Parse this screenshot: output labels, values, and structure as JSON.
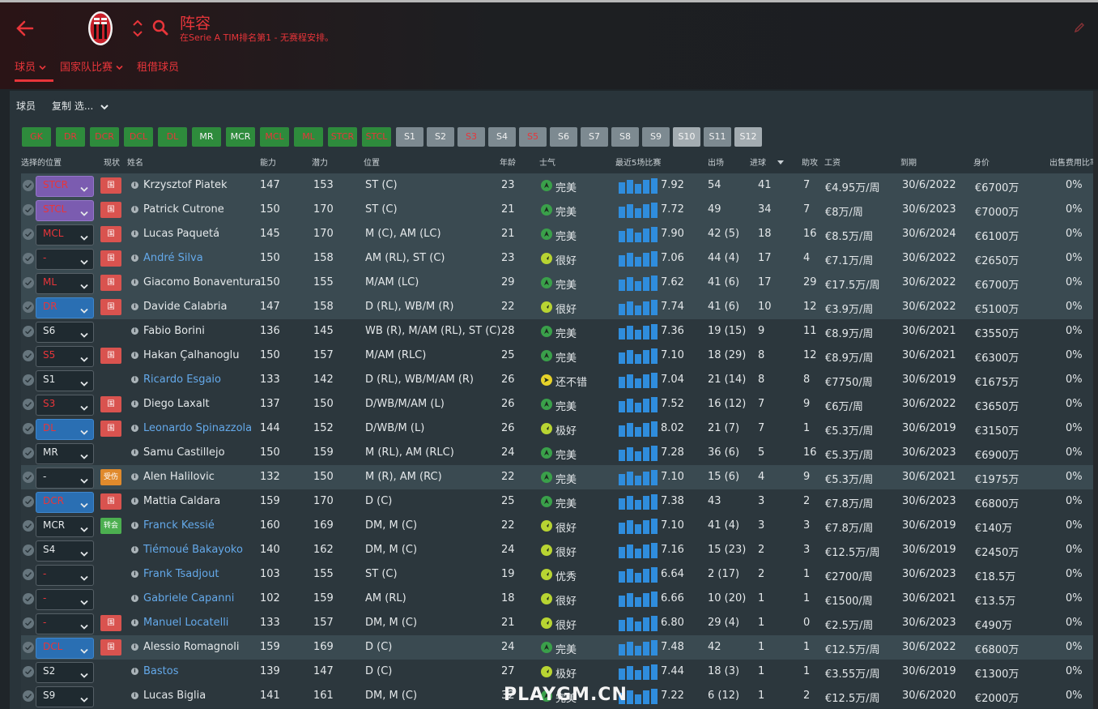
{
  "header": {
    "title": "阵容",
    "subtitle": "在Serie A TIM排名第1 - 无赛程安排。"
  },
  "nav_tabs": [
    {
      "label": "球员",
      "has_dropdown": true,
      "active": true
    },
    {
      "label": "国家队比赛",
      "has_dropdown": true,
      "active": false
    },
    {
      "label": "租借球员",
      "has_dropdown": false,
      "active": false
    }
  ],
  "toolbar": {
    "label": "球员",
    "select": "复制 选..."
  },
  "position_buttons": [
    {
      "label": "GK",
      "state": "green-red"
    },
    {
      "label": "DR",
      "state": "green-red"
    },
    {
      "label": "DCR",
      "state": "green-red"
    },
    {
      "label": "DCL",
      "state": "green-red"
    },
    {
      "label": "DL",
      "state": "green-red"
    },
    {
      "label": "MR",
      "state": "green"
    },
    {
      "label": "MCR",
      "state": "green"
    },
    {
      "label": "MCL",
      "state": "green-red"
    },
    {
      "label": "ML",
      "state": "green-red"
    },
    {
      "label": "STCR",
      "state": "green-red"
    },
    {
      "label": "STCL",
      "state": "green-red"
    },
    {
      "label": "S1",
      "state": "gray"
    },
    {
      "label": "S2",
      "state": "gray"
    },
    {
      "label": "S3",
      "state": "gray-red"
    },
    {
      "label": "S4",
      "state": "gray"
    },
    {
      "label": "S5",
      "state": "gray-red"
    },
    {
      "label": "S6",
      "state": "gray"
    },
    {
      "label": "S7",
      "state": "gray"
    },
    {
      "label": "S8",
      "state": "gray"
    },
    {
      "label": "S9",
      "state": "gray"
    },
    {
      "label": "S10",
      "state": "light"
    },
    {
      "label": "S11",
      "state": "gray"
    },
    {
      "label": "S12",
      "state": "light"
    }
  ],
  "columns": {
    "selected_position": "选择的位置",
    "status": "现状",
    "name": "姓名",
    "ability": "能力",
    "potential": "潜力",
    "position": "位置",
    "age": "年龄",
    "morale": "士气",
    "last5": "最近5场比赛",
    "apps": "出场",
    "goals": "进球",
    "assists": "助攻",
    "wage": "工资",
    "expires": "到期",
    "value": "身价",
    "transfer_fee": "出售费用比率"
  },
  "colors": {
    "accent_red": "#e8353a",
    "link_blue": "#64a9ea",
    "dd_blue": "#2a6fb3",
    "dd_purple": "#7b5cb0",
    "badge_red": "#d9534f",
    "badge_orange": "#e08a2c",
    "badge_green": "#4caf50",
    "morale_green": "#3aa04a",
    "morale_yellow": "#e6d22a",
    "spark_blue": "#2f8ddd"
  },
  "players": [
    {
      "sel": "STCR",
      "dd": "purple",
      "sel_red": true,
      "badge": "国家...",
      "badge_color": "red",
      "name": "Krzysztof Piatek",
      "link": false,
      "ca": "147",
      "pa": "153",
      "position": "ST (C)",
      "age": "23",
      "morale": "完美",
      "morale_icon": "up",
      "rating": "7.92",
      "apps": "54",
      "goals": "41",
      "assists": "7",
      "wage": "€4.95万/周",
      "expires": "30/6/2022",
      "value": "€6700万",
      "fee": "0%"
    },
    {
      "sel": "STCL",
      "dd": "purple",
      "sel_red": true,
      "badge": "国家...",
      "badge_color": "red",
      "name": "Patrick Cutrone",
      "link": false,
      "ca": "150",
      "pa": "170",
      "position": "ST (C)",
      "age": "21",
      "morale": "完美",
      "morale_icon": "up",
      "rating": "7.72",
      "apps": "49",
      "goals": "34",
      "assists": "7",
      "wage": "€8万/周",
      "expires": "30/6/2023",
      "value": "€7000万",
      "fee": "0%"
    },
    {
      "sel": "MCL",
      "dd": "dark",
      "sel_red": true,
      "badge": "国家...",
      "badge_color": "red",
      "name": "Lucas Paquetá",
      "link": false,
      "ca": "145",
      "pa": "170",
      "position": "M (C), AM (LC)",
      "age": "21",
      "morale": "完美",
      "morale_icon": "up",
      "rating": "7.90",
      "apps": "42 (5)",
      "goals": "18",
      "assists": "16",
      "wage": "€8.5万/周",
      "expires": "30/6/2024",
      "value": "€6100万",
      "fee": "0%"
    },
    {
      "sel": "-",
      "dd": "dark",
      "sel_red": true,
      "badge": "国家...",
      "badge_color": "red",
      "name": "André Silva",
      "link": true,
      "ca": "150",
      "pa": "158",
      "position": "AM (RL), ST (C)",
      "age": "23",
      "morale": "很好",
      "morale_icon": "good",
      "rating": "7.06",
      "apps": "44 (4)",
      "goals": "17",
      "assists": "4",
      "wage": "€7.1万/周",
      "expires": "30/6/2022",
      "value": "€2650万",
      "fee": "0%"
    },
    {
      "sel": "ML",
      "dd": "dark",
      "sel_red": true,
      "badge": "国家...",
      "badge_color": "red",
      "name": "Giacomo Bonaventura",
      "link": false,
      "ca": "150",
      "pa": "155",
      "position": "M/AM (LC)",
      "age": "29",
      "morale": "完美",
      "morale_icon": "up",
      "rating": "7.62",
      "apps": "41 (6)",
      "goals": "17",
      "assists": "29",
      "wage": "€17.5万/周",
      "expires": "30/6/2022",
      "value": "€6700万",
      "fee": "0%"
    },
    {
      "sel": "DR",
      "dd": "blue",
      "sel_red": true,
      "badge": "国家...",
      "badge_color": "red",
      "name": "Davide Calabria",
      "link": false,
      "ca": "147",
      "pa": "158",
      "position": "D (RL), WB/M (R)",
      "age": "22",
      "morale": "很好",
      "morale_icon": "good",
      "rating": "7.74",
      "apps": "41 (6)",
      "goals": "10",
      "assists": "12",
      "wage": "€3.9万/周",
      "expires": "30/6/2022",
      "value": "€5100万",
      "fee": "0%"
    },
    {
      "sel": "S6",
      "dd": "dark",
      "sel_red": false,
      "badge": "",
      "badge_color": "",
      "name": "Fabio Borini",
      "link": false,
      "ca": "136",
      "pa": "145",
      "position": "WB (R), M/AM (RL), ST (C)",
      "age": "28",
      "morale": "完美",
      "morale_icon": "up",
      "rating": "7.36",
      "apps": "19 (15)",
      "goals": "9",
      "assists": "11",
      "wage": "€8.9万/周",
      "expires": "30/6/2021",
      "value": "€3550万",
      "fee": "0%"
    },
    {
      "sel": "S5",
      "dd": "dark",
      "sel_red": true,
      "badge": "国家...",
      "badge_color": "red",
      "name": "Hakan Çalhanoglu",
      "link": false,
      "ca": "150",
      "pa": "157",
      "position": "M/AM (RLC)",
      "age": "25",
      "morale": "完美",
      "morale_icon": "up",
      "rating": "7.10",
      "apps": "18 (29)",
      "goals": "8",
      "assists": "12",
      "wage": "€8.9万/周",
      "expires": "30/6/2021",
      "value": "€6300万",
      "fee": "0%"
    },
    {
      "sel": "S1",
      "dd": "dark",
      "sel_red": false,
      "badge": "",
      "badge_color": "",
      "name": "Ricardo Esgaio",
      "link": true,
      "ca": "133",
      "pa": "142",
      "position": "D (RL), WB/M/AM (R)",
      "age": "26",
      "morale": "还不错",
      "morale_icon": "ok",
      "rating": "7.04",
      "apps": "21 (14)",
      "goals": "8",
      "assists": "8",
      "wage": "€7750/周",
      "expires": "30/6/2019",
      "value": "€1675万",
      "fee": "0%"
    },
    {
      "sel": "S3",
      "dd": "dark",
      "sel_red": true,
      "badge": "国家...",
      "badge_color": "red",
      "name": "Diego Laxalt",
      "link": false,
      "ca": "137",
      "pa": "150",
      "position": "D/WB/M/AM (L)",
      "age": "26",
      "morale": "完美",
      "morale_icon": "up",
      "rating": "7.52",
      "apps": "16 (12)",
      "goals": "7",
      "assists": "9",
      "wage": "€6万/周",
      "expires": "30/6/2022",
      "value": "€3650万",
      "fee": "0%"
    },
    {
      "sel": "DL",
      "dd": "blue",
      "sel_red": true,
      "badge": "国家...",
      "badge_color": "red",
      "name": "Leonardo Spinazzola",
      "link": true,
      "ca": "144",
      "pa": "152",
      "position": "D/WB/M (L)",
      "age": "26",
      "morale": "极好",
      "morale_icon": "good",
      "rating": "8.02",
      "apps": "21 (7)",
      "goals": "7",
      "assists": "1",
      "wage": "€5.3万/周",
      "expires": "30/6/2019",
      "value": "€3150万",
      "fee": "0%"
    },
    {
      "sel": "MR",
      "dd": "dark",
      "sel_red": false,
      "badge": "",
      "badge_color": "",
      "name": "Samu Castillejo",
      "link": false,
      "ca": "150",
      "pa": "159",
      "position": "M (RL), AM (RLC)",
      "age": "24",
      "morale": "完美",
      "morale_icon": "up",
      "rating": "7.28",
      "apps": "36 (6)",
      "goals": "5",
      "assists": "16",
      "wage": "€5.3万/周",
      "expires": "30/6/2023",
      "value": "€6900万",
      "fee": "0%"
    },
    {
      "sel": "-",
      "dd": "dark",
      "sel_red": false,
      "badge": "受伤",
      "badge_color": "orange",
      "name": "Alen Halilovic",
      "link": false,
      "ca": "132",
      "pa": "150",
      "position": "M (R), AM (RC)",
      "age": "22",
      "morale": "完美",
      "morale_icon": "up",
      "rating": "7.10",
      "apps": "15 (6)",
      "goals": "4",
      "assists": "9",
      "wage": "€5.3万/周",
      "expires": "30/6/2021",
      "value": "€1975万",
      "fee": "0%"
    },
    {
      "sel": "DCR",
      "dd": "blue",
      "sel_red": true,
      "badge": "国家...",
      "badge_color": "red",
      "name": "Mattia Caldara",
      "link": false,
      "ca": "159",
      "pa": "170",
      "position": "D (C)",
      "age": "25",
      "morale": "完美",
      "morale_icon": "up",
      "rating": "7.38",
      "apps": "43",
      "goals": "3",
      "assists": "2",
      "wage": "€7.8万/周",
      "expires": "30/6/2023",
      "value": "€6800万",
      "fee": "0%"
    },
    {
      "sel": "MCR",
      "dd": "dark",
      "sel_red": false,
      "badge": "转会",
      "badge_color": "green",
      "name": "Franck Kessié",
      "link": true,
      "ca": "160",
      "pa": "169",
      "position": "DM, M (C)",
      "age": "22",
      "morale": "很好",
      "morale_icon": "good",
      "rating": "7.10",
      "apps": "41 (4)",
      "goals": "3",
      "assists": "3",
      "wage": "€7.8万/周",
      "expires": "30/6/2019",
      "value": "€140万",
      "fee": "0%"
    },
    {
      "sel": "S4",
      "dd": "dark",
      "sel_red": false,
      "badge": "",
      "badge_color": "",
      "name": "Tiémoué Bakayoko",
      "link": true,
      "ca": "140",
      "pa": "162",
      "position": "DM, M (C)",
      "age": "24",
      "morale": "很好",
      "morale_icon": "good",
      "rating": "7.16",
      "apps": "15 (23)",
      "goals": "2",
      "assists": "3",
      "wage": "€12.5万/周",
      "expires": "30/6/2019",
      "value": "€2450万",
      "fee": "0%"
    },
    {
      "sel": "-",
      "dd": "dark",
      "sel_red": true,
      "badge": "",
      "badge_color": "",
      "name": "Frank Tsadjout",
      "link": true,
      "ca": "103",
      "pa": "155",
      "position": "ST (C)",
      "age": "19",
      "morale": "优秀",
      "morale_icon": "good",
      "rating": "6.64",
      "apps": "2 (17)",
      "goals": "2",
      "assists": "1",
      "wage": "€2700/周",
      "expires": "30/6/2023",
      "value": "€18.5万",
      "fee": "0%"
    },
    {
      "sel": "-",
      "dd": "dark",
      "sel_red": true,
      "badge": "",
      "badge_color": "",
      "name": "Gabriele Capanni",
      "link": true,
      "ca": "102",
      "pa": "159",
      "position": "AM (RL)",
      "age": "18",
      "morale": "很好",
      "morale_icon": "good",
      "rating": "6.66",
      "apps": "10 (20)",
      "goals": "1",
      "assists": "1",
      "wage": "€1500/周",
      "expires": "30/6/2021",
      "value": "€13.5万",
      "fee": "0%"
    },
    {
      "sel": "-",
      "dd": "dark",
      "sel_red": true,
      "badge": "国家...",
      "badge_color": "red",
      "name": "Manuel Locatelli",
      "link": true,
      "ca": "133",
      "pa": "157",
      "position": "DM, M (C)",
      "age": "21",
      "morale": "很好",
      "morale_icon": "good",
      "rating": "6.80",
      "apps": "29 (4)",
      "goals": "1",
      "assists": "0",
      "wage": "€2.5万/周",
      "expires": "30/6/2023",
      "value": "€490万",
      "fee": "0%"
    },
    {
      "sel": "DCL",
      "dd": "blue",
      "sel_red": true,
      "badge": "国家...",
      "badge_color": "red",
      "name": "Alessio Romagnoli",
      "link": false,
      "ca": "159",
      "pa": "169",
      "position": "D (C)",
      "age": "24",
      "morale": "完美",
      "morale_icon": "up",
      "rating": "7.48",
      "apps": "42",
      "goals": "1",
      "assists": "1",
      "wage": "€12.5万/周",
      "expires": "30/6/2022",
      "value": "€6800万",
      "fee": "0%"
    },
    {
      "sel": "S2",
      "dd": "dark",
      "sel_red": false,
      "badge": "",
      "badge_color": "",
      "name": "Bastos",
      "link": true,
      "ca": "139",
      "pa": "147",
      "position": "D (C)",
      "age": "27",
      "morale": "极好",
      "morale_icon": "good",
      "rating": "7.44",
      "apps": "18 (3)",
      "goals": "1",
      "assists": "1",
      "wage": "€3.55万/周",
      "expires": "30/6/2019",
      "value": "€1300万",
      "fee": "0%"
    },
    {
      "sel": "S9",
      "dd": "dark",
      "sel_red": false,
      "badge": "",
      "badge_color": "",
      "name": "Lucas Biglia",
      "link": false,
      "ca": "141",
      "pa": "161",
      "position": "DM, M (C)",
      "age": "32",
      "morale": "完美",
      "morale_icon": "up",
      "rating": "7.22",
      "apps": "6 (12)",
      "goals": "1",
      "assists": "2",
      "wage": "€12.5万/周",
      "expires": "30/6/2020",
      "value": "€2000万",
      "fee": "0%"
    }
  ],
  "watermark": "PLAYGM.CN"
}
